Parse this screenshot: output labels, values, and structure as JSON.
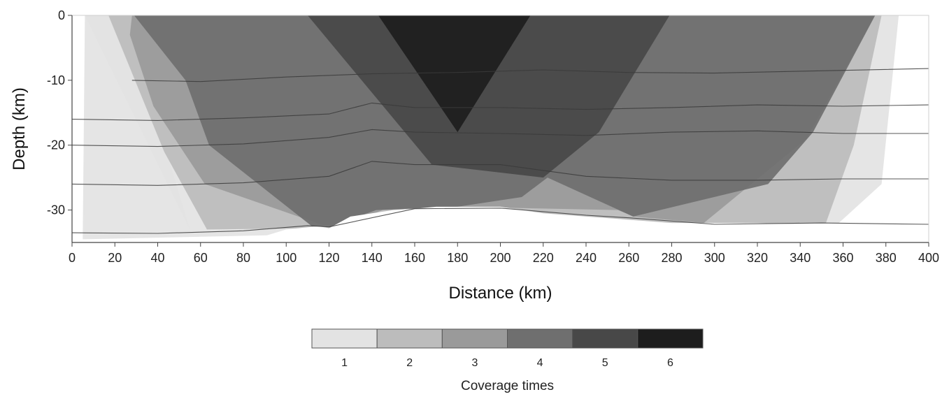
{
  "chart_data": {
    "type": "area",
    "title": "",
    "xlabel": "Distance (km)",
    "ylabel": "Depth (km)",
    "xlim": [
      0,
      400
    ],
    "ylim": [
      -35,
      0
    ],
    "x_ticks": [
      0,
      20,
      40,
      60,
      80,
      100,
      120,
      140,
      160,
      180,
      200,
      220,
      240,
      260,
      280,
      300,
      320,
      340,
      360,
      380,
      400
    ],
    "y_ticks": [
      0,
      -10,
      -20,
      -30
    ],
    "grid": false,
    "legend": {
      "title": "Coverage times",
      "placement": "bottom-center",
      "entries": [
        {
          "label": "1",
          "color": "#e3e3e3"
        },
        {
          "label": "2",
          "color": "#bcbcbc"
        },
        {
          "label": "3",
          "color": "#9a9a9a"
        },
        {
          "label": "4",
          "color": "#6f6f6f"
        },
        {
          "label": "5",
          "color": "#484848"
        },
        {
          "label": "6",
          "color": "#1d1d1d"
        }
      ]
    },
    "coverage_polygons": [
      {
        "coverage": 1,
        "color": "#e3e3e3",
        "x": [
          6,
          386,
          378,
          358,
          5
        ],
        "y": [
          0,
          0,
          -26,
          -32,
          -34.5
        ]
      },
      {
        "coverage": 1,
        "color": "#e3e3e3",
        "x": [
          6,
          20,
          45,
          55
        ],
        "y": [
          0,
          0,
          -22,
          -33
        ]
      },
      {
        "coverage": 2,
        "color": "#bcbcbc",
        "x": [
          17,
          378,
          365,
          352,
          63,
          43
        ],
        "y": [
          0,
          0,
          -20,
          -32,
          -33,
          -21
        ]
      },
      {
        "coverage": 3,
        "color": "#9a9a9a",
        "x": [
          28,
          375,
          343,
          295,
          262,
          255,
          180,
          145,
          123,
          62,
          38,
          27
        ],
        "y": [
          0,
          0,
          -19,
          -32,
          -31,
          -30,
          -29.5,
          -30,
          -33,
          -26,
          -14,
          -3
        ]
      },
      {
        "coverage": 4,
        "color": "#6f6f6f",
        "x": [
          29,
          375,
          346,
          325,
          262,
          222,
          210,
          180,
          142,
          121,
          112,
          64,
          53
        ],
        "y": [
          0,
          0,
          -18,
          -26,
          -31,
          -25,
          -28,
          -29.5,
          -30,
          -32.5,
          -32.5,
          -20,
          -10
        ]
      },
      {
        "coverage": 5,
        "color": "#484848",
        "x": [
          110,
          279,
          246,
          220,
          168
        ],
        "y": [
          0,
          0,
          -18,
          -25,
          -23
        ]
      },
      {
        "coverage": 6,
        "color": "#1d1d1d",
        "x": [
          143,
          214,
          180
        ],
        "y": [
          0,
          0,
          -18
        ]
      }
    ],
    "layer_lines": [
      {
        "x": [
          28,
          60,
          100,
          140,
          180,
          220,
          260,
          300,
          340,
          400
        ],
        "y": [
          -10,
          -10.2,
          -9.5,
          -9.0,
          -8.8,
          -8.4,
          -8.8,
          -8.9,
          -8.6,
          -8.2
        ]
      },
      {
        "x": [
          0,
          40,
          80,
          120,
          140,
          160,
          200,
          240,
          280,
          320,
          360,
          400
        ],
        "y": [
          -16,
          -16.2,
          -15.8,
          -15.2,
          -13.5,
          -14.2,
          -14.2,
          -14.5,
          -14.2,
          -13.8,
          -14.0,
          -13.8
        ]
      },
      {
        "x": [
          0,
          40,
          80,
          120,
          140,
          160,
          200,
          240,
          280,
          320,
          360,
          400
        ],
        "y": [
          -20,
          -20.2,
          -19.8,
          -18.8,
          -17.6,
          -18.0,
          -18.2,
          -18.5,
          -18.0,
          -17.8,
          -18.2,
          -18.2
        ]
      },
      {
        "x": [
          0,
          40,
          80,
          120,
          140,
          160,
          200,
          240,
          280,
          320,
          360,
          400
        ],
        "y": [
          -26,
          -26.2,
          -25.8,
          -24.8,
          -22.5,
          -23.0,
          -23.0,
          -24.8,
          -25.4,
          -25.4,
          -25.2,
          -25.2
        ]
      },
      {
        "x": [
          0,
          40,
          80,
          110,
          120,
          160,
          200,
          240,
          260,
          300,
          350,
          400
        ],
        "y": [
          -33.5,
          -33.6,
          -33.2,
          -32.4,
          -32.6,
          -29.8,
          -29.7,
          -30.8,
          -31.2,
          -32.2,
          -32.0,
          -32.2
        ]
      }
    ],
    "bottom_boundary": {
      "x": [
        0,
        40,
        80,
        100,
        115,
        120,
        130,
        140,
        150,
        160,
        170,
        180,
        190,
        200,
        210,
        220,
        240,
        260,
        280,
        300,
        320,
        340,
        360,
        380,
        400
      ],
      "y": [
        -35,
        -35,
        -35,
        -33,
        -32.5,
        -32.8,
        -31,
        -30.5,
        -30,
        -29.8,
        -29.5,
        -29.5,
        -29.5,
        -29.5,
        -30,
        -30.5,
        -31,
        -31.5,
        -32,
        -32,
        -32,
        -32.2,
        -32.4,
        -32.4,
        -32.4
      ]
    }
  }
}
